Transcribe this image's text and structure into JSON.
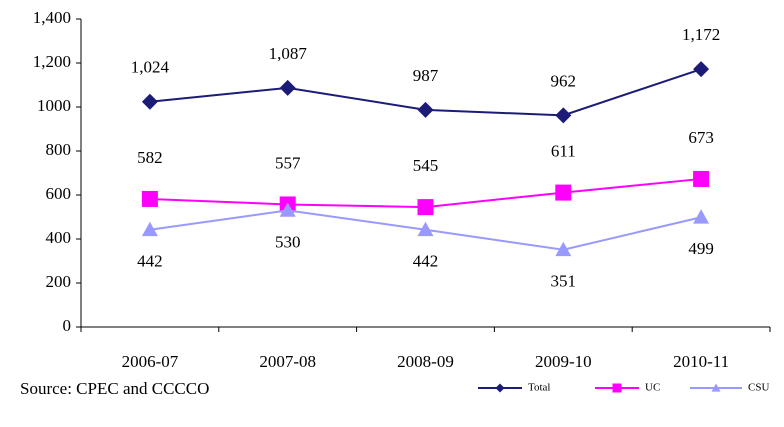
{
  "chart_data": {
    "type": "line",
    "categories": [
      "2006-07",
      "2007-08",
      "2008-09",
      "2009-10",
      "2010-11"
    ],
    "series": [
      {
        "name": "Total",
        "color": "#1c1c78",
        "marker": "diamond",
        "values": [
          1024,
          1087,
          987,
          962,
          1172
        ],
        "value_labels": [
          "1,024",
          "1,087",
          "987",
          "962",
          "1,172"
        ]
      },
      {
        "name": "UC",
        "color": "#ff00ff",
        "marker": "square",
        "values": [
          582,
          557,
          545,
          611,
          673
        ]
      },
      {
        "name": "CSU",
        "color": "#9999ff",
        "marker": "triangle",
        "values": [
          442,
          530,
          442,
          351,
          499
        ]
      }
    ],
    "ylim": [
      0,
      1400
    ],
    "yticks": [
      0,
      200,
      400,
      600,
      800,
      1000,
      {
        "value": 1200,
        "label": "1,200"
      },
      {
        "value": 1400,
        "label": "1,400"
      }
    ],
    "source": "Source: CPEC and CCCCO",
    "legend": "bottom-right"
  }
}
